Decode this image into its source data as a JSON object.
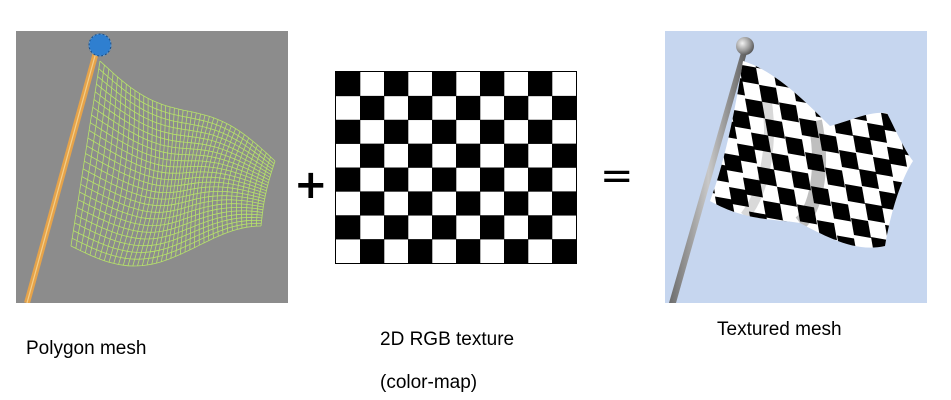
{
  "operators": {
    "plus": "+",
    "equals": "="
  },
  "captions": {
    "mesh": "Polygon mesh",
    "texture_line1": "2D RGB texture",
    "texture_line2": "(color-map)",
    "textured": "Textured mesh"
  },
  "texture": {
    "columns": 10,
    "rows": 8,
    "dark": "#000000",
    "light": "#ffffff"
  },
  "colors": {
    "mesh_background": "#8c8c8c",
    "mesh_wire": "#b7e36a",
    "pole": "#e6a34a",
    "pole_ball": "#2f7fd0",
    "sky": "#c6d6ef"
  }
}
